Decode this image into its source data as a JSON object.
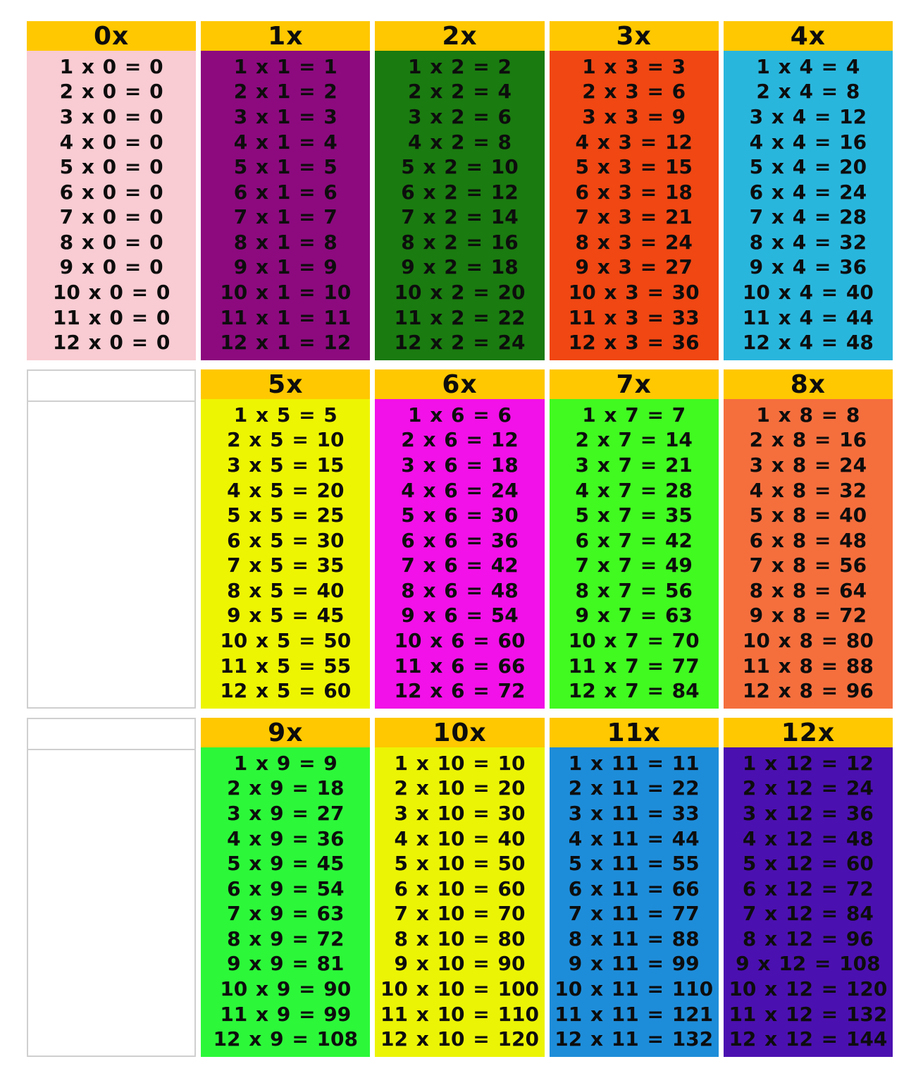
{
  "colors": {
    "page_background": "#FFFFFF",
    "table_header_background": "#FFC800",
    "table_text": "#0D0D0D",
    "empty_cell_background": "#FFFFFF",
    "empty_cell_border": "#CFCFCF"
  },
  "rows": [
    {
      "cells": [
        {
          "type": "table",
          "label": "0x",
          "color": "#F9CBD2",
          "equations": [
            "1 x 0 = 0",
            "2 x 0 = 0",
            "3 x 0 = 0",
            "4 x 0 = 0",
            "5 x 0 = 0",
            "6 x 0 = 0",
            "7 x 0 = 0",
            "8 x 0 = 0",
            "9 x 0 = 0",
            "10 x 0 = 0",
            "11 x 0 = 0",
            "12 x 0 = 0"
          ]
        },
        {
          "type": "table",
          "label": "1x",
          "color": "#8C0A7E",
          "equations": [
            "1 x 1 = 1",
            "2 x 1 = 2",
            "3 x 1 = 3",
            "4 x 1 = 4",
            "5 x 1 = 5",
            "6 x 1 = 6",
            "7 x 1 = 7",
            "8 x 1 = 8",
            "9 x 1 = 9",
            "10 x 1 = 10",
            "11 x 1 = 11",
            "12 x 1 = 12"
          ]
        },
        {
          "type": "table",
          "label": "2x",
          "color": "#1A7B10",
          "equations": [
            "1 x 2 = 2",
            "2 x 2 = 4",
            "3 x 2 = 6",
            "4 x 2 = 8",
            "5 x 2 = 10",
            "6 x 2 = 12",
            "7 x 2 = 14",
            "8 x 2 = 16",
            "9 x 2 = 18",
            "10 x 2 = 20",
            "11 x 2 = 22",
            "12 x 2 = 24"
          ]
        },
        {
          "type": "table",
          "label": "3x",
          "color": "#F04713",
          "equations": [
            "1 x 3 = 3",
            "2 x 3 = 6",
            "3 x 3 = 9",
            "4 x 3 = 12",
            "5 x 3 = 15",
            "6 x 3 = 18",
            "7 x 3 = 21",
            "8 x 3 = 24",
            "9 x 3 = 27",
            "10 x 3 = 30",
            "11 x 3 = 33",
            "12 x 3 = 36"
          ]
        },
        {
          "type": "table",
          "label": "4x",
          "color": "#29B6DD",
          "equations": [
            "1 x 4 = 4",
            "2 x 4 = 8",
            "3 x 4 = 12",
            "4 x 4 = 16",
            "5 x 4 = 20",
            "6 x 4 = 24",
            "7 x 4 = 28",
            "8 x 4 = 32",
            "9 x 4 = 36",
            "10 x 4 = 40",
            "11 x 4 = 44",
            "12 x 4 = 48"
          ]
        }
      ]
    },
    {
      "cells": [
        {
          "type": "empty"
        },
        {
          "type": "table",
          "label": "5x",
          "color": "#EEF502",
          "equations": [
            "1 x 5 = 5",
            "2 x 5 = 10",
            "3 x 5 = 15",
            "4 x 5 = 20",
            "5 x 5 = 25",
            "6 x 5 = 30",
            "7 x 5 = 35",
            "8 x 5 = 40",
            "9 x 5 = 45",
            "10 x 5 = 50",
            "11 x 5 = 55",
            "12 x 5 = 60"
          ]
        },
        {
          "type": "table",
          "label": "6x",
          "color": "#F211E8",
          "equations": [
            "1 x 6 = 6",
            "2 x 6 = 12",
            "3 x 6 = 18",
            "4 x 6 = 24",
            "5 x 6 = 30",
            "6 x 6 = 36",
            "7 x 6 = 42",
            "8 x 6 = 48",
            "9 x 6 = 54",
            "10 x 6 = 60",
            "11 x 6 = 66",
            "12 x 6 = 72"
          ]
        },
        {
          "type": "table",
          "label": "7x",
          "color": "#41FA20",
          "equations": [
            "1 x 7 = 7",
            "2 x 7 = 14",
            "3 x 7 = 21",
            "4 x 7 = 28",
            "5 x 7 = 35",
            "6 x 7 = 42",
            "7 x 7 = 49",
            "8 x 7 = 56",
            "9 x 7 = 63",
            "10 x 7 = 70",
            "11 x 7 = 77",
            "12 x 7 = 84"
          ]
        },
        {
          "type": "table",
          "label": "8x",
          "color": "#F56F3D",
          "equations": [
            "1 x 8 = 8",
            "2 x 8 = 16",
            "3 x 8 = 24",
            "4 x 8 = 32",
            "5 x 8 = 40",
            "6 x 8 = 48",
            "7 x 8 = 56",
            "8 x 8 = 64",
            "9 x 8 = 72",
            "10 x 8 = 80",
            "11 x 8 = 88",
            "12 x 8 = 96"
          ]
        }
      ]
    },
    {
      "cells": [
        {
          "type": "empty"
        },
        {
          "type": "table",
          "label": "9x",
          "color": "#2CF839",
          "equations": [
            "1 x 9 = 9",
            "2 x 9 = 18",
            "3 x 9 = 27",
            "4 x 9 = 36",
            "5 x 9 = 45",
            "6 x 9 = 54",
            "7 x 9 = 63",
            "8 x 9 = 72",
            "9 x 9 = 81",
            "10 x 9 = 90",
            "11 x 9 = 99",
            "12 x 9 = 108"
          ]
        },
        {
          "type": "table",
          "label": "10x",
          "color": "#ECF405",
          "equations": [
            "1 x 10 = 10",
            "2 x 10 = 20",
            "3 x 10 = 30",
            "4 x 10 = 40",
            "5 x 10 = 50",
            "6 x 10 = 60",
            "7 x 10 = 70",
            "8 x 10 = 80",
            "9 x 10 = 90",
            "10 x 10 = 100",
            "11 x 10 = 110",
            "12 x 10 = 120"
          ]
        },
        {
          "type": "table",
          "label": "11x",
          "color": "#1E8DD9",
          "equations": [
            "1 x 11 = 11",
            "2 x 11 = 22",
            "3 x 11 = 33",
            "4 x 11 = 44",
            "5 x 11 = 55",
            "6 x 11 = 66",
            "7 x 11 = 77",
            "8 x 11 = 88",
            "9 x 11 = 99",
            "10 x 11 = 110",
            "11 x 11 = 121",
            "12 x 11 = 132"
          ]
        },
        {
          "type": "table",
          "label": "12x",
          "color": "#4B10B0",
          "equations": [
            "1 x 12 = 12",
            "2 x 12 = 24",
            "3 x 12 = 36",
            "4 x 12 = 48",
            "5 x 12 = 60",
            "6 x 12 = 72",
            "7 x 12 = 84",
            "8 x 12 = 96",
            "9 x 12 = 108",
            "10 x 12 = 120",
            "11 x 12 = 132",
            "12 x 12 = 144"
          ]
        }
      ]
    }
  ]
}
